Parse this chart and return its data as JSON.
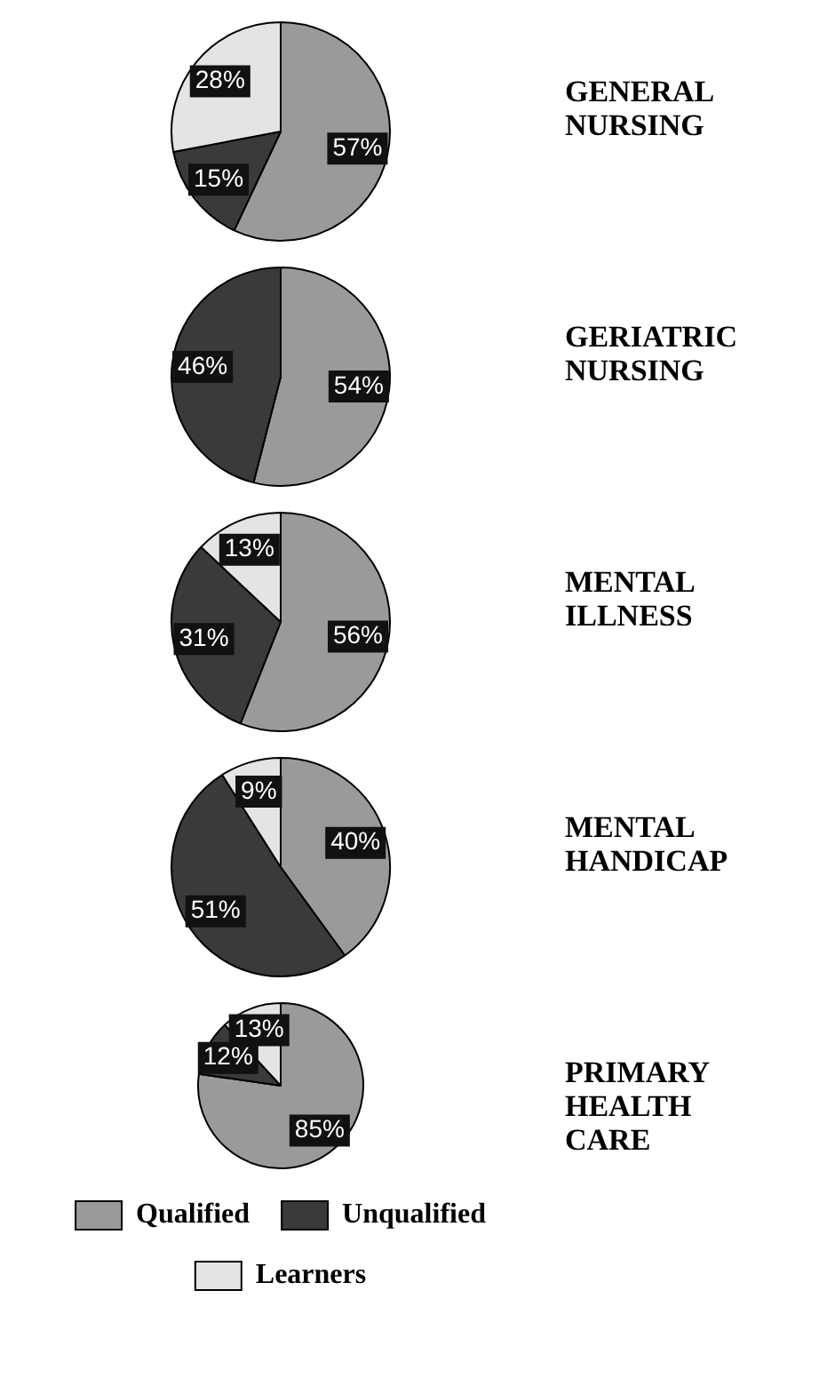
{
  "chart_data": [
    {
      "type": "pie",
      "title": "GENERAL NURSING",
      "categories": [
        null,
        null,
        null
      ],
      "values": [
        57,
        15,
        28
      ],
      "value_labels": [
        "57%",
        "15%",
        "28%"
      ],
      "colors": [
        "#9a9a9a",
        "#3a3a3a",
        "#e4e4e4"
      ]
    },
    {
      "type": "pie",
      "title": "GERIATRIC NURSING",
      "categories": [
        null,
        null
      ],
      "values": [
        54,
        46
      ],
      "value_labels": [
        "54%",
        "46%"
      ],
      "colors": [
        "#9a9a9a",
        "#3a3a3a"
      ]
    },
    {
      "type": "pie",
      "title": "MENTAL ILLNESS",
      "categories": [
        null,
        null,
        null
      ],
      "values": [
        56,
        31,
        13
      ],
      "value_labels": [
        "56%",
        "31%",
        "13%"
      ],
      "colors": [
        "#9a9a9a",
        "#3a3a3a",
        "#e4e4e4"
      ]
    },
    {
      "type": "pie",
      "title": "MENTAL HANDICAP",
      "categories": [
        null,
        null,
        null
      ],
      "values": [
        40,
        51,
        9
      ],
      "value_labels": [
        "40%",
        "51%",
        "9%"
      ],
      "colors": [
        "#9a9a9a",
        "#3a3a3a",
        "#e4e4e4"
      ]
    },
    {
      "type": "pie",
      "title": "PRIMARY HEALTH CARE",
      "categories": [
        "Qualified",
        "Unqualified",
        "Learners"
      ],
      "values": [
        85,
        12,
        13
      ],
      "value_labels": [
        "85%",
        "12%",
        "13%"
      ],
      "colors": [
        "#9a9a9a",
        "#3a3a3a",
        "#e4e4e4"
      ],
      "legend": "bottom"
    }
  ]
}
